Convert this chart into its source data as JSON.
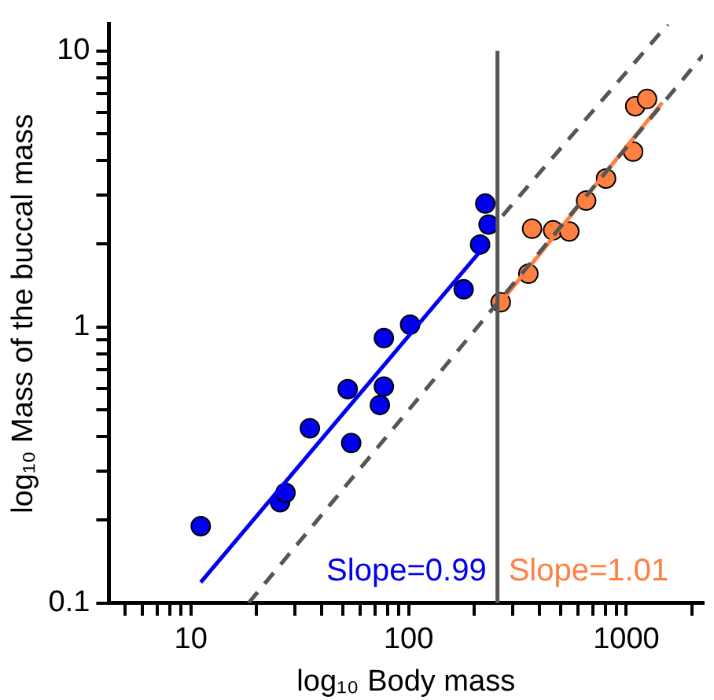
{
  "chart_data": {
    "type": "scatter",
    "xlabel": "log₁₀ Body mass",
    "ylabel": "log₁₀ Mass of the buccal mass",
    "log": "xy",
    "grid": false,
    "legend": false,
    "marker": "circle",
    "xlim": [
      4.2,
      2250
    ],
    "ylim": [
      0.1,
      12.5
    ],
    "xticks": [
      {
        "value": 5,
        "label": null
      },
      {
        "value": 6,
        "label": null
      },
      {
        "value": 7,
        "label": null
      },
      {
        "value": 8,
        "label": null
      },
      {
        "value": 9,
        "label": null
      },
      10,
      {
        "value": 20,
        "label": null
      },
      {
        "value": 30,
        "label": null
      },
      {
        "value": 40,
        "label": null
      },
      {
        "value": 50,
        "label": null
      },
      {
        "value": 60,
        "label": null
      },
      {
        "value": 70,
        "label": null
      },
      {
        "value": 80,
        "label": null
      },
      {
        "value": 90,
        "label": null
      },
      100,
      {
        "value": 200,
        "label": null
      },
      {
        "value": 300,
        "label": null
      },
      {
        "value": 400,
        "label": null
      },
      {
        "value": 500,
        "label": null
      },
      {
        "value": 600,
        "label": null
      },
      {
        "value": 700,
        "label": null
      },
      {
        "value": 800,
        "label": null
      },
      {
        "value": 900,
        "label": null
      },
      1000,
      {
        "value": 2000,
        "label": null
      }
    ],
    "yticks": [
      0.1,
      {
        "value": 0.2,
        "label": null
      },
      {
        "value": 0.3,
        "label": null
      },
      {
        "value": 0.4,
        "label": null
      },
      {
        "value": 0.5,
        "label": null
      },
      {
        "value": 0.6,
        "label": null
      },
      {
        "value": 0.7,
        "label": null
      },
      {
        "value": 0.8,
        "label": null
      },
      {
        "value": 0.9,
        "label": null
      },
      1,
      {
        "value": 2,
        "label": null
      },
      {
        "value": 3,
        "label": null
      },
      {
        "value": 4,
        "label": null
      },
      {
        "value": 5,
        "label": null
      },
      {
        "value": 6,
        "label": null
      },
      {
        "value": 7,
        "label": null
      },
      {
        "value": 8,
        "label": null
      },
      {
        "value": 9,
        "label": null
      },
      10
    ],
    "ref_lines": [
      {
        "axis": "x",
        "value": 256,
        "color": "#555555"
      }
    ],
    "annotations": [
      "Slope=0.99",
      "Slope=1.01"
    ],
    "series": [
      {
        "type": "line",
        "color": "#555555",
        "line_style": "dashed",
        "marker": "none",
        "x": [
          270,
          1550
        ],
        "values": [
          2.53,
          12.5
        ]
      },
      {
        "type": "line",
        "color": "#555555",
        "line_style": "dashed",
        "marker": "none",
        "x": [
          18.4,
          2250
        ],
        "values": [
          0.1,
          9.66
        ]
      },
      {
        "type": "line",
        "color": "#0000ee",
        "marker": "none",
        "x": [
          11.1,
          216
        ],
        "values": [
          0.119,
          1.905
        ]
      },
      {
        "type": "line",
        "color": "#ff8040",
        "marker": "none",
        "x": [
          265,
          1462
        ],
        "values": [
          1.23,
          6.5
        ]
      },
      {
        "type": "scatter",
        "color": "#0000ee",
        "x": [
          11.1,
          25.7,
          27.2,
          35.2,
          52.5,
          54.5,
          73.8,
          77,
          77,
          101.6,
          179,
          213,
          233,
          225
        ],
        "values": [
          0.19,
          0.232,
          0.251,
          0.43,
          0.596,
          0.38,
          0.522,
          0.609,
          0.912,
          1.02,
          1.37,
          1.99,
          2.35,
          2.8
        ]
      },
      {
        "type": "scatter",
        "color": "#ff8040",
        "x": [
          265,
          355,
          369,
          461,
          547,
          654,
          807,
          1075,
          1099,
          1245
        ],
        "values": [
          1.23,
          1.56,
          2.27,
          2.24,
          2.22,
          2.87,
          3.45,
          4.32,
          6.31,
          6.7
        ]
      }
    ]
  }
}
